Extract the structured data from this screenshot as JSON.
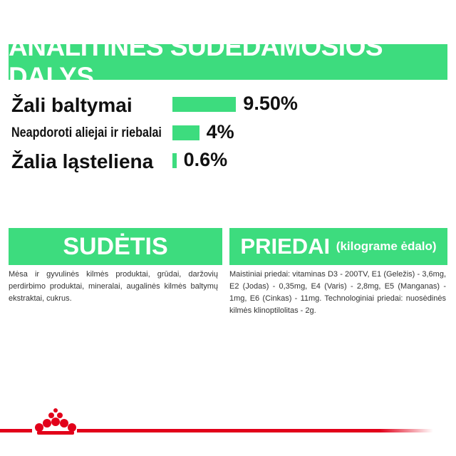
{
  "header": {
    "title": "ANALITINĖS SUDEDAMOSIOS DALYS"
  },
  "analytical": [
    {
      "label": "Žali baltymai",
      "value": 9.5,
      "value_label": "9.50%"
    },
    {
      "label": "Neapdoroti aliejai ir riebalai",
      "value": 4,
      "value_label": "4%"
    },
    {
      "label": "Žalia ląsteliena",
      "value": 0.6,
      "value_label": "0.6%"
    }
  ],
  "composition": {
    "title": "SUDĖTIS",
    "text": "Mėsa ir gyvulinės kilmės produktai, grūdai, daržovių perdirbimo produktai, mineralai, augalinės kilmės baltymų ekstraktai, cukrus."
  },
  "additives": {
    "title": "PRIEDAI",
    "subtitle": "(kilograme ėdalo)",
    "text": "Maistiniai priedai: vitaminas D3 - 200TV, E1 (Geležis) - 3,6mg, E2 (Jodas) - 0,35mg, E4 (Varis) - 2,8mg, E5 (Manganas) - 1mg, E6 (Cinkas) - 11mg. Technologiniai priedai: nuosėdinės kilmės klinoptilolitas - 2g."
  }
}
